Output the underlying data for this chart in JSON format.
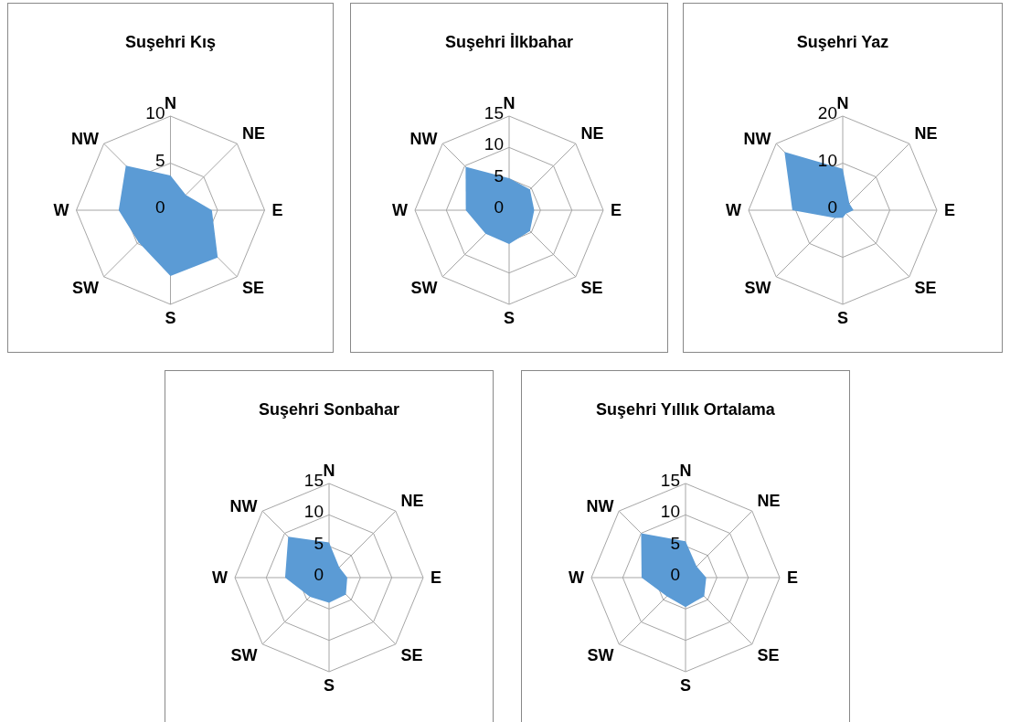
{
  "chart_data": [
    {
      "type": "radar",
      "title": "Suşehri Kış",
      "categories": [
        "N",
        "NE",
        "E",
        "SE",
        "S",
        "SW",
        "W",
        "NW"
      ],
      "series": [
        {
          "color": "#5b9bd5",
          "values": [
            3.7,
            2.3,
            4.4,
            7.1,
            7.0,
            4.8,
            5.5,
            6.7
          ]
        }
      ],
      "ylim": [
        0,
        10
      ],
      "yticks": [
        0,
        5,
        10
      ],
      "grid": true,
      "legend": false
    },
    {
      "type": "radar",
      "title": "Suşehri İlkbahar",
      "categories": [
        "N",
        "NE",
        "E",
        "SE",
        "S",
        "SW",
        "W",
        "NW"
      ],
      "series": [
        {
          "color": "#5b9bd5",
          "values": [
            5.1,
            4.7,
            4.0,
            4.7,
            5.4,
            5.3,
            6.9,
            9.8
          ]
        }
      ],
      "ylim": [
        0,
        15
      ],
      "yticks": [
        0,
        5,
        10,
        15
      ],
      "grid": true,
      "legend": false
    },
    {
      "type": "radar",
      "title": "Suşehri Yaz",
      "categories": [
        "N",
        "NE",
        "E",
        "SE",
        "S",
        "SW",
        "W",
        "NW"
      ],
      "series": [
        {
          "color": "#5b9bd5",
          "values": [
            8.8,
            2.0,
            2.3,
            1.0,
            1.6,
            2.3,
            10.7,
            17.5
          ]
        }
      ],
      "ylim": [
        0,
        20
      ],
      "yticks": [
        0,
        10,
        20
      ],
      "grid": true,
      "legend": false
    },
    {
      "type": "radar",
      "title": "Suşehri Sonbahar",
      "categories": [
        "N",
        "NE",
        "E",
        "SE",
        "S",
        "SW",
        "W",
        "NW"
      ],
      "series": [
        {
          "color": "#5b9bd5",
          "values": [
            5.6,
            2.3,
            2.9,
            3.8,
            4.0,
            4.3,
            7.0,
            9.2
          ]
        }
      ],
      "ylim": [
        0,
        15
      ],
      "yticks": [
        0,
        5,
        10,
        15
      ],
      "grid": true,
      "legend": false
    },
    {
      "type": "radar",
      "title": "Suşehri Yıllık Ortalama",
      "categories": [
        "N",
        "NE",
        "E",
        "SE",
        "S",
        "SW",
        "W",
        "NW"
      ],
      "series": [
        {
          "color": "#5b9bd5",
          "values": [
            5.8,
            2.5,
            3.3,
            4.2,
            4.7,
            4.2,
            7.0,
            10.0
          ]
        }
      ],
      "ylim": [
        0,
        15
      ],
      "yticks": [
        0,
        5,
        10,
        15
      ],
      "grid": true,
      "legend": false
    }
  ]
}
